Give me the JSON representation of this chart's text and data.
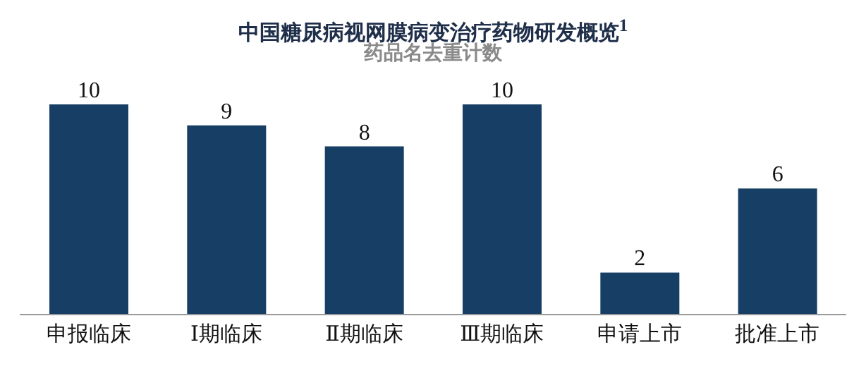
{
  "chart_data": {
    "type": "bar",
    "title": "中国糖尿病视网膜病变治疗药物研发概览$^{1}$",
    "subtitle": "药品名去重计数",
    "categories": [
      "申报临床",
      "Ⅰ期临床",
      "Ⅱ期临床",
      "Ⅲ期临床",
      "申请上市",
      "批准上市"
    ],
    "values": [
      10,
      9,
      8,
      10,
      2,
      6
    ],
    "color": "#173f65",
    "data_labels": true
  }
}
